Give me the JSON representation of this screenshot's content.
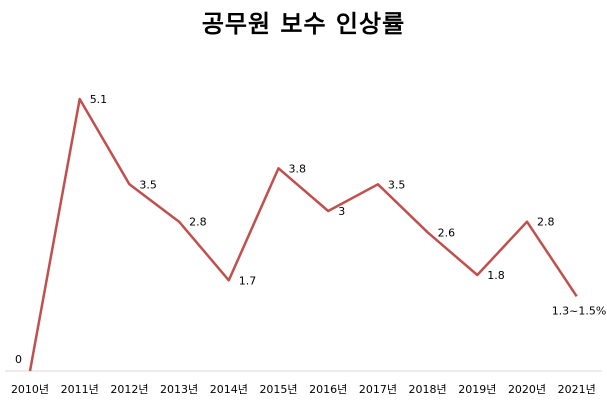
{
  "chart_data": {
    "type": "line",
    "title": "공무원 보수 인상률",
    "xlabel": "",
    "ylabel": "",
    "categories": [
      "2010년",
      "2011년",
      "2012년",
      "2013년",
      "2014년",
      "2015년",
      "2016년",
      "2017년",
      "2018년",
      "2019년",
      "2020년",
      "2021년"
    ],
    "series": [
      {
        "values": [
          0,
          5.1,
          3.5,
          2.8,
          1.7,
          3.8,
          3,
          3.5,
          2.6,
          1.8,
          2.8,
          1.4
        ],
        "labels": [
          "0",
          "5.1",
          "3.5",
          "2.8",
          "1.7",
          "3.8",
          "3",
          "3.5",
          "2.6",
          "1.8",
          "2.8",
          "1.3~1.5%"
        ],
        "color": "#c0504d"
      }
    ],
    "ylim": [
      0,
      5.1
    ],
    "grid": false,
    "legend": "none"
  }
}
